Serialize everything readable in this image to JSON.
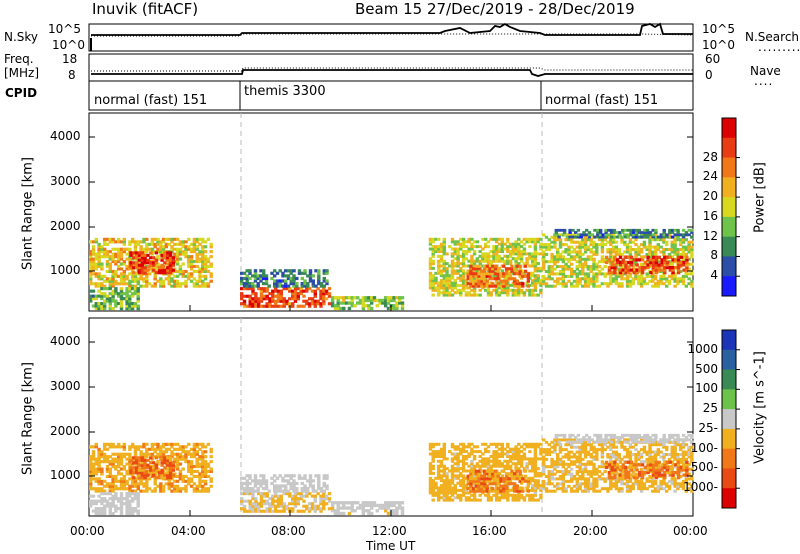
{
  "header": {
    "station": "Inuvik (fitACF)",
    "beam_date": "Beam 15  27/Dec/2019 - 28/Dec/2019"
  },
  "sky_panel": {
    "left_label": "N.Sky",
    "right_label": "N.Search",
    "ticks_left": [
      "10^5",
      "10^0"
    ],
    "ticks_right": [
      "10^5",
      "10^0"
    ]
  },
  "freq_panel": {
    "left_label_1": "Freq.",
    "left_label_2": "[MHz]",
    "ticks_left": [
      "18",
      "8"
    ],
    "ticks_right": [
      "60",
      "0"
    ],
    "right_label": "Nave"
  },
  "cpid": {
    "label": "CPID",
    "modes": [
      {
        "name": "normal (fast) 151",
        "start_hour": 0
      },
      {
        "name": "themis 3300",
        "start_hour": 6
      },
      {
        "name": "normal (fast) 151",
        "start_hour": 18
      }
    ]
  },
  "axes": {
    "ylabel": "Slant Range [km]",
    "yticks": [
      "1000",
      "2000",
      "3000",
      "4000"
    ],
    "xlabel": "Time UT",
    "xticks": [
      "00:00",
      "04:00",
      "08:00",
      "12:00",
      "16:00",
      "20:00",
      "00:00"
    ]
  },
  "colorbars": {
    "power": {
      "title": "Power [dB]",
      "ticks": [
        "4",
        "8",
        "12",
        "16",
        "20",
        "24",
        "28"
      ],
      "colors": [
        "#1a1aff",
        "#2b4fa8",
        "#3a8a55",
        "#6fc24a",
        "#d8d820",
        "#f0b020",
        "#f07818",
        "#e83c14",
        "#dd0000"
      ]
    },
    "velocity": {
      "title": "Velocity [m s^-1]",
      "ticks": [
        "1000",
        "500",
        "100",
        "25",
        "-25",
        "-100",
        "-500",
        "-1000"
      ],
      "colors": [
        "#1c34b8",
        "#2a5fa0",
        "#3a8a55",
        "#6cc24a",
        "#c8c8c8",
        "#f0b020",
        "#f07818",
        "#ea4a14",
        "#dd0000"
      ]
    }
  },
  "chart_data": {
    "type": "heatmap",
    "title": "Inuvik (fitACF) Beam 15 27/Dec/2019 - 28/Dec/2019",
    "xlabel": "Time UT",
    "ylabel": "Slant Range [km]",
    "x_range_hours": [
      0,
      24
    ],
    "y_range_km": [
      180,
      4600
    ],
    "power_range_db": [
      0,
      32
    ],
    "velocity_range_ms": [
      -1200,
      1200
    ],
    "cpid_changes_hours": [
      6,
      18
    ],
    "scatter_regions": [
      {
        "t0": 0.0,
        "t1": 4.9,
        "r0": 700,
        "r1": 1800,
        "power": 18,
        "velocity": -300
      },
      {
        "t0": 1.6,
        "t1": 3.4,
        "r0": 1000,
        "r1": 1500,
        "power": 28,
        "velocity": -600
      },
      {
        "t0": 0.0,
        "t1": 2.0,
        "r0": 200,
        "r1": 700,
        "power": 12,
        "velocity": 40
      },
      {
        "t0": 6.0,
        "t1": 9.6,
        "r0": 250,
        "r1": 700,
        "power": 26,
        "velocity": -150
      },
      {
        "t0": 6.0,
        "t1": 9.5,
        "r0": 700,
        "r1": 1100,
        "power": 8,
        "velocity": 10
      },
      {
        "t0": 9.5,
        "t1": 12.5,
        "r0": 200,
        "r1": 500,
        "power": 14,
        "velocity": -80
      },
      {
        "t0": 13.5,
        "t1": 18.0,
        "r0": 500,
        "r1": 1800,
        "power": 16,
        "velocity": -250
      },
      {
        "t0": 15.0,
        "t1": 17.5,
        "r0": 700,
        "r1": 1200,
        "power": 24,
        "velocity": -500
      },
      {
        "t0": 18.0,
        "t1": 24.0,
        "r0": 700,
        "r1": 1900,
        "power": 16,
        "velocity": -200
      },
      {
        "t0": 20.5,
        "t1": 23.8,
        "r0": 1000,
        "r1": 1400,
        "power": 26,
        "velocity": -550
      },
      {
        "t0": 18.5,
        "t1": 24.0,
        "r0": 1800,
        "r1": 2000,
        "power": 8,
        "velocity": 0
      }
    ]
  }
}
